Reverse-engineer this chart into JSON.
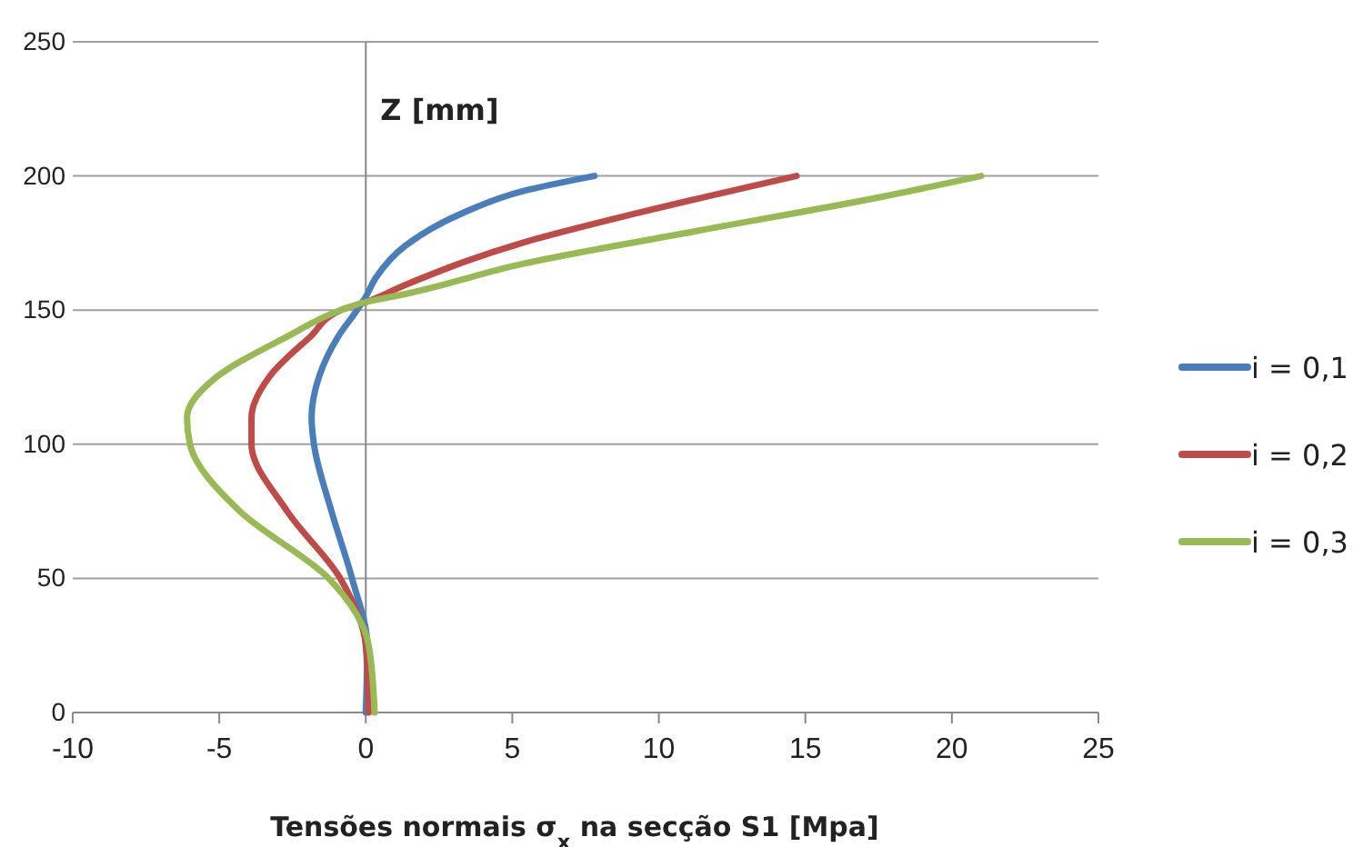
{
  "chart_data": {
    "type": "line",
    "xlabel": "Tensões normais σ$_{x}$ na secção S1 [Mpa]",
    "ylabel": "Z [mm]",
    "xlim": [
      -10,
      25
    ],
    "xticks": [
      -10,
      -5,
      0,
      5,
      10,
      15,
      20,
      25
    ],
    "ylim": [
      0,
      250
    ],
    "yticks": [
      0,
      50,
      100,
      150,
      200,
      250
    ],
    "grid": "y",
    "legend": "right",
    "marker": "none",
    "line_style": "solid",
    "series": [
      {
        "name": "i = 0,1",
        "color": "#4a7ebb",
        "x": [
          0,
          0.05,
          -0.47,
          -1.17,
          -1.77,
          -1.85,
          -1.6,
          -0.95,
          -0.3,
          0,
          0.34,
          1.35,
          3.37,
          5.38,
          7.8
        ],
        "values": [
          0,
          25,
          50,
          75,
          100,
          110,
          125,
          140,
          150,
          155,
          162,
          174,
          186.5,
          194.4,
          200
        ]
      },
      {
        "name": "i = 0,2",
        "color": "#be4b48",
        "x": [
          0.1,
          0,
          -0.87,
          -2.68,
          -3.9,
          -3.9,
          -3.3,
          -1.9,
          -0.85,
          0,
          1.35,
          5.38,
          9.4,
          14.7
        ],
        "values": [
          0,
          25,
          50,
          75,
          100,
          110,
          125,
          140,
          150,
          153,
          159.4,
          175.2,
          186.5,
          200
        ]
      },
      {
        "name": "i = 0,3",
        "color": "#98b954",
        "x": [
          0.3,
          0.1,
          -1.27,
          -4.3,
          -6,
          -6.1,
          -5.1,
          -2.7,
          -0.85,
          0,
          1.35,
          5.38,
          11.4,
          17.5,
          21
        ],
        "values": [
          0,
          25,
          50,
          75,
          100,
          110,
          125,
          140,
          150,
          153,
          156,
          167.3,
          179.7,
          192,
          200
        ]
      }
    ]
  }
}
